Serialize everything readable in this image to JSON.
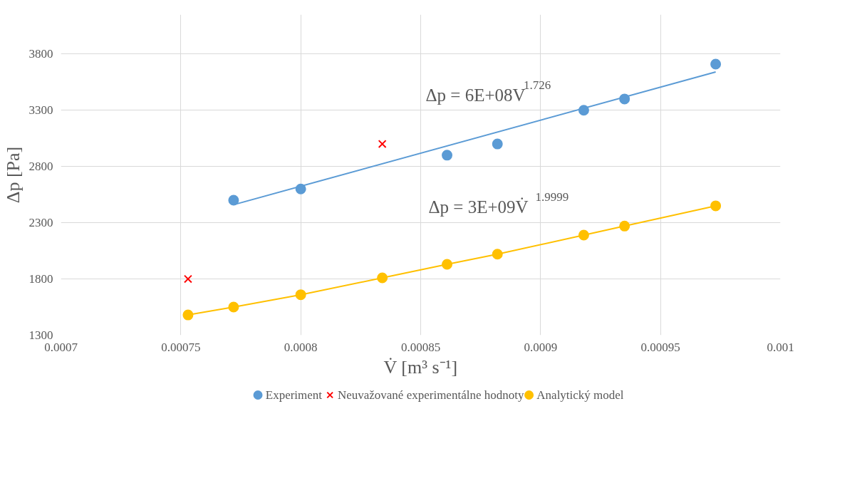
{
  "chart_data": {
    "type": "scatter",
    "xlabel": "V̇ [m³ s⁻¹]",
    "ylabel": "Δp [Pa]",
    "xlim": [
      0.0007,
      0.001
    ],
    "ylim": [
      1300,
      4150
    ],
    "xticks": [
      0.0007,
      0.00075,
      0.0008,
      0.00085,
      0.0009,
      0.00095,
      0.001
    ],
    "yticks": [
      1300,
      1800,
      2300,
      2800,
      3300,
      3800
    ],
    "grid": true,
    "legend": "bottom",
    "series": [
      {
        "name": "Experiment",
        "marker": "circle",
        "color": "#5b9bd5",
        "x": [
          0.000772,
          0.0008,
          0.000861,
          0.000882,
          0.000918,
          0.000935,
          0.000973
        ],
        "values": [
          2500,
          2600,
          2900,
          3000,
          3300,
          3400,
          3710
        ]
      },
      {
        "name": "Neuvažované experimentálne hodnoty",
        "marker": "cross",
        "color": "#ff0000",
        "x": [
          0.000753,
          0.000834
        ],
        "values": [
          1800,
          3000
        ]
      },
      {
        "name": "Analytický model",
        "marker": "circle",
        "color": "#ffc000",
        "x": [
          0.000753,
          0.000772,
          0.0008,
          0.000834,
          0.000861,
          0.000882,
          0.000918,
          0.000935,
          0.000973
        ],
        "values": [
          1480,
          1550,
          1660,
          1810,
          1930,
          2020,
          2190,
          2270,
          2450
        ]
      },
      {
        "type": "line",
        "line_style": "solid",
        "color": "#5b9bd5",
        "x": [
          0.000772,
          0.000973
        ],
        "values": [
          2460,
          3640
        ]
      },
      {
        "type": "line",
        "line_style": "solid",
        "color": "#ffc000",
        "x": [
          0.000753,
          0.000772,
          0.0008,
          0.000834,
          0.000861,
          0.000882,
          0.000918,
          0.000935,
          0.000973
        ],
        "values": [
          1480,
          1550,
          1660,
          1810,
          1930,
          2020,
          2190,
          2270,
          2450
        ]
      }
    ],
    "annotations": [
      "Δp = 6E+08V$^{1.726}$",
      "Δp  = 3E+09V̇$^{1.9999}$"
    ]
  }
}
